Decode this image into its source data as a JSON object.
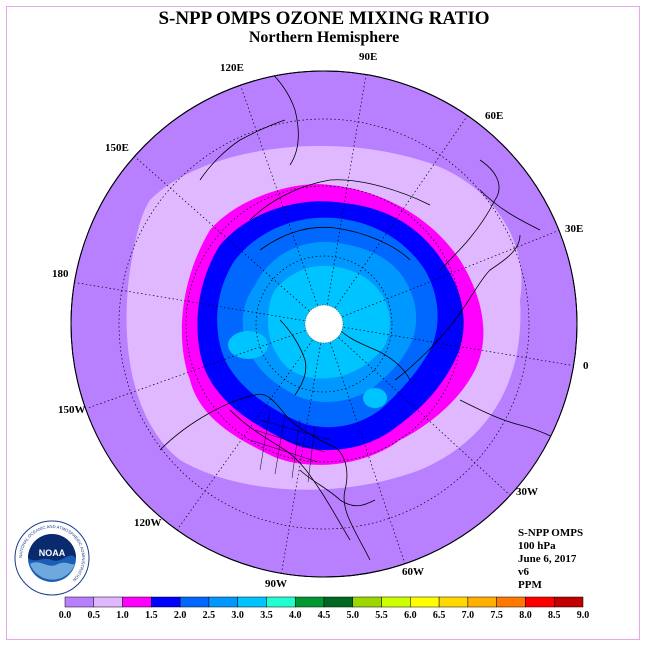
{
  "title": "S-NPP OMPS OZONE MIXING RATIO",
  "subtitle": "Northern Hemisphere",
  "longitude_labels": [
    "90E",
    "60E",
    "30E",
    "0",
    "30W",
    "60W",
    "90W",
    "120W",
    "150W",
    "180",
    "150E",
    "120E"
  ],
  "info": {
    "instrument": "S-NPP OMPS",
    "level": "100 hPa",
    "date": "June 6, 2017",
    "version": "v6",
    "units": "PPM"
  },
  "legend": {
    "labels": [
      "0.0",
      "0.5",
      "1.0",
      "1.5",
      "2.0",
      "2.5",
      "3.0",
      "3.5",
      "4.0",
      "4.5",
      "5.0",
      "5.5",
      "6.0",
      "6.5",
      "7.0",
      "7.5",
      "8.0",
      "8.5",
      "9.0"
    ],
    "colors": [
      "#b87fff",
      "#e0b8ff",
      "#ff00ff",
      "#0000ff",
      "#0068ff",
      "#0098ff",
      "#00c4ff",
      "#20ffd0",
      "#009830",
      "#006820",
      "#9cd800",
      "#ccff00",
      "#ffff00",
      "#ffd800",
      "#ffb000",
      "#ff7800",
      "#ff0000",
      "#c00000"
    ],
    "last_color": "#8b4513"
  },
  "logo": {
    "text": "NOAA",
    "ring_text": "NATIONAL OCEANIC AND ATMOSPHERIC ADMINISTRATION"
  },
  "colors": {
    "background": "#b87fff",
    "frame": "#e8a8e8",
    "pole_hole": "#ffffff"
  }
}
